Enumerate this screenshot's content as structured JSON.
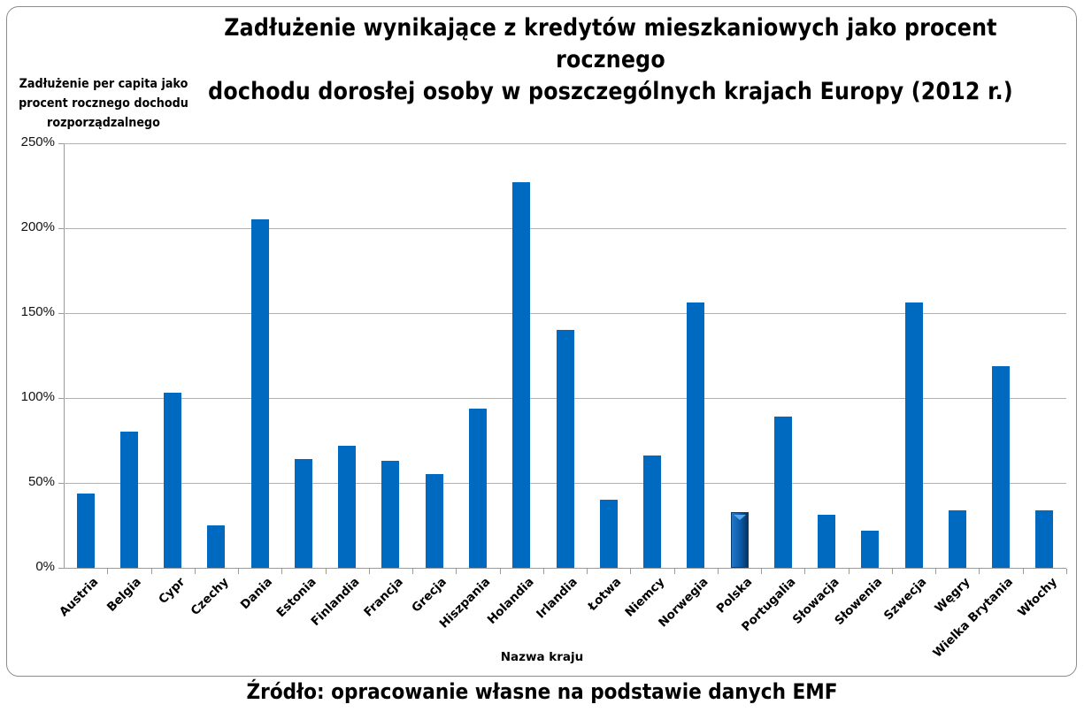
{
  "chart_data": {
    "type": "bar",
    "title": "Zadłużenie wynikające z kredytów mieszkaniowych jako procent rocznego dochodu dorosłej osoby w poszczególnych krajach Europy (2012 r.)",
    "title_lines": [
      "Zadłużenie wynikające z kredytów mieszkaniowych jako procent rocznego",
      "dochodu dorosłej osoby w poszczególnych krajach Europy (2012 r.)"
    ],
    "ylabel": "Zadłużenie per capita jako procent rocznego dochodu rozporządzalnego",
    "ylabel_lines": [
      "Zadłużenie per capita jako",
      "procent rocznego dochodu",
      "rozporządzalnego"
    ],
    "xlabel": "Nazwa kraju",
    "ylim": [
      0,
      250
    ],
    "yticks": [
      "0%",
      "50%",
      "100%",
      "150%",
      "200%",
      "250%"
    ],
    "grid": true,
    "legend": null,
    "highlighted_category": "Polska",
    "bar_color": "#0069c0",
    "categories": [
      "Austria",
      "Belgia",
      "Cypr",
      "Czechy",
      "Dania",
      "Estonia",
      "Finlandia",
      "Francja",
      "Grecja",
      "Hiszpania",
      "Holandia",
      "Irlandia",
      "Łotwa",
      "Niemcy",
      "Norwegia",
      "Polska",
      "Portugalia",
      "Słowacja",
      "Słowenia",
      "Szwecja",
      "Węgry",
      "Wielka Brytania",
      "Włochy"
    ],
    "values": [
      44,
      80,
      103,
      25,
      205,
      64,
      72,
      63,
      55,
      94,
      227,
      140,
      40,
      66,
      156,
      33,
      89,
      31,
      22,
      156,
      34,
      119,
      34
    ],
    "unit": "%"
  },
  "footer": {
    "source": "Źródło: opracowanie własne na podstawie danych EMF"
  }
}
